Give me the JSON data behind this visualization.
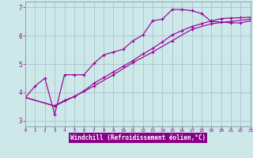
{
  "xlabel": "Windchill (Refroidissement éolien,°C)",
  "bg_color": "#cce8e8",
  "grid_color": "#aabbcc",
  "line_color": "#990099",
  "xlim": [
    0,
    23
  ],
  "ylim": [
    2.8,
    7.2
  ],
  "xticks": [
    0,
    1,
    2,
    3,
    4,
    5,
    6,
    7,
    8,
    9,
    10,
    11,
    12,
    13,
    14,
    15,
    16,
    17,
    18,
    19,
    20,
    21,
    22,
    23
  ],
  "yticks": [
    3,
    4,
    5,
    6,
    7
  ],
  "series1_x": [
    0,
    1,
    2,
    3,
    4,
    5,
    6,
    7,
    8,
    9,
    10,
    11,
    12,
    13,
    14,
    15,
    16,
    17,
    18,
    19,
    20,
    21,
    22,
    23
  ],
  "series1_y": [
    3.82,
    4.22,
    4.5,
    3.22,
    4.62,
    4.62,
    4.62,
    5.02,
    5.32,
    5.42,
    5.52,
    5.82,
    6.02,
    6.52,
    6.58,
    6.92,
    6.92,
    6.88,
    6.78,
    6.5,
    6.48,
    6.45,
    6.45,
    6.52
  ],
  "series2_x": [
    0,
    3,
    4,
    5,
    6,
    7,
    8,
    9,
    10,
    11,
    12,
    13,
    14,
    15,
    16,
    17,
    18,
    19,
    20,
    21,
    22,
    23
  ],
  "series2_y": [
    3.82,
    3.52,
    3.72,
    3.85,
    4.05,
    4.32,
    4.52,
    4.72,
    4.92,
    5.12,
    5.35,
    5.55,
    5.78,
    6.02,
    6.18,
    6.32,
    6.42,
    6.52,
    6.6,
    6.62,
    6.63,
    6.65
  ],
  "series3_x": [
    0,
    3,
    5,
    7,
    9,
    11,
    13,
    15,
    17,
    19,
    21,
    23
  ],
  "series3_y": [
    3.82,
    3.52,
    3.85,
    4.22,
    4.62,
    5.05,
    5.42,
    5.82,
    6.22,
    6.42,
    6.5,
    6.58
  ],
  "xlabel_bg": "#880088",
  "xlabel_fg": "#ffffff"
}
